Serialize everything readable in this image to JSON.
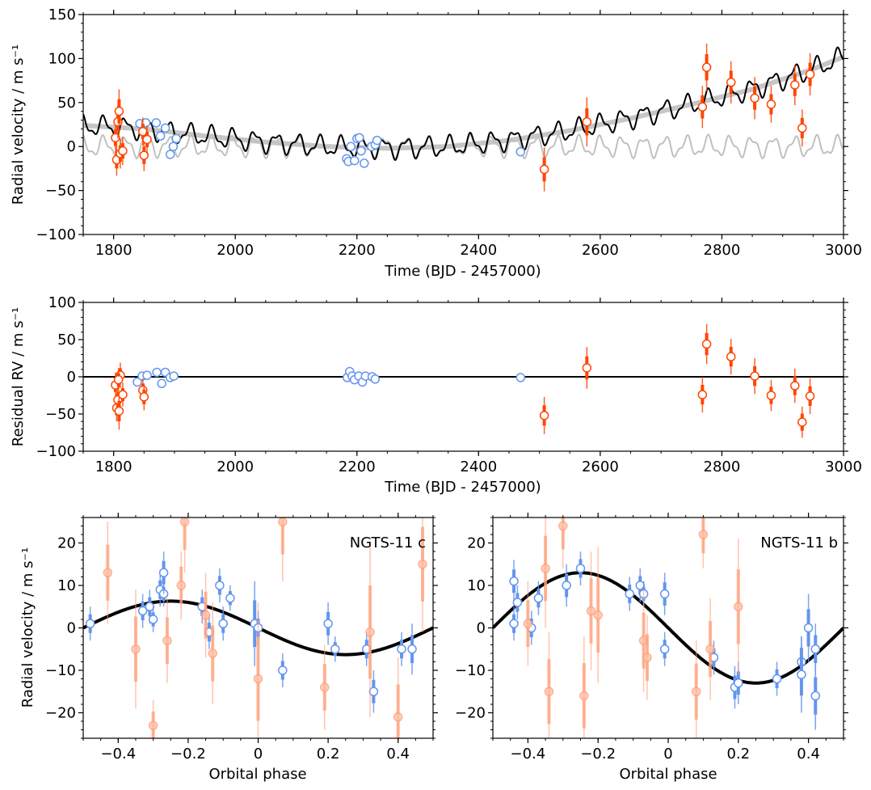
{
  "chart_data": [
    {
      "type": "scatter",
      "panel": "top",
      "xlabel": "Time (BJD - 2457000)",
      "ylabel": "Radial velocity / m s⁻¹",
      "xlim": [
        1750,
        3000
      ],
      "ylim": [
        -100,
        150
      ],
      "xticks": [
        1800,
        2000,
        2200,
        2400,
        2600,
        2800,
        3000
      ],
      "yticks": [
        -100,
        -50,
        0,
        50,
        100,
        150
      ],
      "colors": {
        "blue": "#6495ed",
        "red": "#ff4500",
        "model": "#000000",
        "trend": "#b0b0b0",
        "activity": "#c0c0c0"
      },
      "model": {
        "trend_knots": [
          [
            1750,
            24
          ],
          [
            1850,
            20
          ],
          [
            1950,
            12
          ],
          [
            2050,
            5
          ],
          [
            2150,
            0
          ],
          [
            2250,
            -2
          ],
          [
            2350,
            0
          ],
          [
            2450,
            7
          ],
          [
            2550,
            18
          ],
          [
            2650,
            32
          ],
          [
            2750,
            48
          ],
          [
            2850,
            65
          ],
          [
            2950,
            88
          ],
          [
            3000,
            102
          ]
        ],
        "osc_amp": 13,
        "osc_period": 35.5
      },
      "series": [
        {
          "name": "blue",
          "points": [
            [
              1843,
              26,
              4
            ],
            [
              1853,
              27,
              4
            ],
            [
              1870,
              27,
              5
            ],
            [
              1877,
              12,
              4
            ],
            [
              1885,
              21,
              4
            ],
            [
              1893,
              -9,
              4
            ],
            [
              1898,
              0,
              4
            ],
            [
              1903,
              9,
              5
            ],
            [
              2183,
              -14,
              4
            ],
            [
              2186,
              -17,
              4
            ],
            [
              2190,
              0,
              4
            ],
            [
              2196,
              -16,
              4
            ],
            [
              2200,
              9,
              4
            ],
            [
              2204,
              10,
              4
            ],
            [
              2207,
              -5,
              4
            ],
            [
              2212,
              -19,
              4
            ],
            [
              2224,
              0,
              4
            ],
            [
              2230,
              2,
              4
            ],
            [
              2233,
              7,
              4
            ],
            [
              2469,
              -6,
              4
            ]
          ]
        },
        {
          "name": "red",
          "points": [
            [
              1803,
              10,
              17
            ],
            [
              1805,
              -15,
              18
            ],
            [
              1807,
              28,
              19
            ],
            [
              1809,
              40,
              25
            ],
            [
              1811,
              -8,
              17
            ],
            [
              1815,
              -5,
              16
            ],
            [
              1848,
              17,
              16
            ],
            [
              1850,
              -10,
              18
            ],
            [
              1855,
              8,
              16
            ],
            [
              2508,
              -26,
              25
            ],
            [
              2578,
              28,
              28
            ],
            [
              2768,
              45,
              24
            ],
            [
              2775,
              90,
              27
            ],
            [
              2815,
              73,
              24
            ],
            [
              2854,
              55,
              24
            ],
            [
              2881,
              48,
              21
            ],
            [
              2920,
              70,
              23
            ],
            [
              2932,
              21,
              21
            ],
            [
              2945,
              82,
              24
            ]
          ]
        }
      ]
    },
    {
      "type": "scatter",
      "panel": "middle",
      "xlabel": "Time (BJD - 2457000)",
      "ylabel": "Residual RV / m s⁻¹",
      "xlim": [
        1750,
        3000
      ],
      "ylim": [
        -100,
        100
      ],
      "xticks": [
        1800,
        2000,
        2200,
        2400,
        2600,
        2800,
        3000
      ],
      "yticks": [
        -100,
        -50,
        0,
        50,
        100
      ],
      "zero_line": 0,
      "series": [
        {
          "name": "blue",
          "points": [
            [
              1839,
              -7,
              4
            ],
            [
              1847,
              1,
              4
            ],
            [
              1855,
              2,
              4
            ],
            [
              1871,
              6,
              4
            ],
            [
              1879,
              -9,
              4
            ],
            [
              1885,
              6,
              4
            ],
            [
              1893,
              -1,
              4
            ],
            [
              1899,
              1,
              5
            ],
            [
              2184,
              -1,
              4
            ],
            [
              2188,
              7,
              4
            ],
            [
              2192,
              1,
              4
            ],
            [
              2196,
              -4,
              4
            ],
            [
              2203,
              1,
              4
            ],
            [
              2209,
              -7,
              4
            ],
            [
              2214,
              1,
              4
            ],
            [
              2225,
              0,
              4
            ],
            [
              2230,
              -3,
              4
            ],
            [
              2469,
              -1,
              4
            ]
          ]
        },
        {
          "name": "red",
          "points": [
            [
              1803,
              -11,
              17
            ],
            [
              1805,
              -42,
              18
            ],
            [
              1807,
              -31,
              19
            ],
            [
              1809,
              -46,
              25
            ],
            [
              1811,
              2,
              17
            ],
            [
              1815,
              -24,
              16
            ],
            [
              1808,
              -4,
              16
            ],
            [
              1848,
              -18,
              16
            ],
            [
              1850,
              -27,
              18
            ],
            [
              2508,
              -52,
              25
            ],
            [
              2578,
              12,
              28
            ],
            [
              2768,
              -24,
              24
            ],
            [
              2775,
              44,
              27
            ],
            [
              2815,
              27,
              24
            ],
            [
              2854,
              1,
              24
            ],
            [
              2881,
              -25,
              21
            ],
            [
              2920,
              -12,
              23
            ],
            [
              2932,
              -61,
              21
            ],
            [
              2945,
              -26,
              24
            ]
          ]
        }
      ]
    },
    {
      "type": "scatter",
      "panel": "bottom-left",
      "title": "NGTS-11 c",
      "xlabel": "Orbital phase",
      "ylabel": "Radial velocity / m s⁻¹",
      "xlim": [
        -0.5,
        0.5
      ],
      "ylim": [
        -26,
        26
      ],
      "xticks": [
        -0.4,
        -0.2,
        0.0,
        0.2,
        0.4
      ],
      "yticks": [
        -20,
        -10,
        0,
        10,
        20
      ],
      "model": {
        "amplitude": 6.3,
        "phase_of_max": -0.25
      },
      "series": [
        {
          "name": "blue",
          "points": [
            [
              -0.48,
              1,
              4
            ],
            [
              -0.33,
              4,
              4
            ],
            [
              -0.31,
              5,
              4
            ],
            [
              -0.3,
              2,
              3
            ],
            [
              -0.28,
              9,
              4
            ],
            [
              -0.27,
              8,
              3
            ],
            [
              -0.27,
              13,
              5
            ],
            [
              -0.16,
              5,
              4
            ],
            [
              -0.14,
              -1,
              4
            ],
            [
              -0.11,
              10,
              4
            ],
            [
              -0.1,
              1,
              4
            ],
            [
              -0.08,
              7,
              3
            ],
            [
              -0.01,
              1,
              10
            ],
            [
              0.0,
              0,
              4
            ],
            [
              0.07,
              -10,
              4
            ],
            [
              0.2,
              1,
              5
            ],
            [
              0.22,
              -5,
              3
            ],
            [
              0.31,
              -5,
              4
            ],
            [
              0.33,
              -15,
              5
            ],
            [
              0.41,
              -5,
              4
            ],
            [
              0.44,
              -5,
              6
            ]
          ]
        },
        {
          "name": "red",
          "points": [
            [
              -0.43,
              13,
              12
            ],
            [
              -0.35,
              -5,
              14
            ],
            [
              -0.3,
              -23,
              6
            ],
            [
              -0.26,
              -3,
              10
            ],
            [
              -0.22,
              10,
              8
            ],
            [
              -0.21,
              25,
              12
            ],
            [
              -0.15,
              3,
              10
            ],
            [
              -0.13,
              -6,
              12
            ],
            [
              0.0,
              -12,
              18
            ],
            [
              0.07,
              25,
              14
            ],
            [
              0.19,
              -14,
              10
            ],
            [
              0.32,
              -1,
              20
            ],
            [
              0.4,
              -21,
              14
            ],
            [
              0.47,
              15,
              16
            ]
          ]
        }
      ]
    },
    {
      "type": "scatter",
      "panel": "bottom-right",
      "title": "NGTS-11 b",
      "xlabel": "Orbital phase",
      "ylabel": "",
      "xlim": [
        -0.5,
        0.5
      ],
      "ylim": [
        -26,
        26
      ],
      "xticks": [
        -0.4,
        -0.2,
        0.0,
        0.2,
        0.4
      ],
      "yticks": [
        -20,
        -10,
        0,
        10,
        20
      ],
      "model": {
        "amplitude": 13,
        "phase_of_max": -0.25
      },
      "series": [
        {
          "name": "blue",
          "points": [
            [
              -0.44,
              1,
              4
            ],
            [
              -0.44,
              11,
              5
            ],
            [
              -0.43,
              6,
              4
            ],
            [
              -0.39,
              0,
              4
            ],
            [
              -0.37,
              7,
              4
            ],
            [
              -0.29,
              10,
              5
            ],
            [
              -0.25,
              14,
              4
            ],
            [
              -0.11,
              8,
              4
            ],
            [
              -0.08,
              10,
              4
            ],
            [
              -0.07,
              8,
              3
            ],
            [
              -0.01,
              -5,
              4
            ],
            [
              -0.01,
              8,
              5
            ],
            [
              0.13,
              -7,
              4
            ],
            [
              0.19,
              -14,
              5
            ],
            [
              0.2,
              -13,
              5
            ],
            [
              0.31,
              -12,
              4
            ],
            [
              0.38,
              -8,
              6
            ],
            [
              0.38,
              -11,
              9
            ],
            [
              0.4,
              0,
              8
            ],
            [
              0.42,
              -16,
              8
            ],
            [
              0.42,
              -5,
              6
            ]
          ]
        },
        {
          "name": "red",
          "points": [
            [
              -0.4,
              1,
              10
            ],
            [
              -0.35,
              14,
              14
            ],
            [
              -0.34,
              -15,
              14
            ],
            [
              -0.3,
              24,
              10
            ],
            [
              -0.24,
              -16,
              14
            ],
            [
              -0.22,
              4,
              14
            ],
            [
              -0.2,
              3,
              16
            ],
            [
              -0.07,
              -3,
              12
            ],
            [
              -0.06,
              -7,
              10
            ],
            [
              0.08,
              -15,
              12
            ],
            [
              0.1,
              22,
              8
            ],
            [
              0.12,
              -5,
              12
            ],
            [
              0.2,
              5,
              16
            ]
          ]
        }
      ]
    }
  ]
}
